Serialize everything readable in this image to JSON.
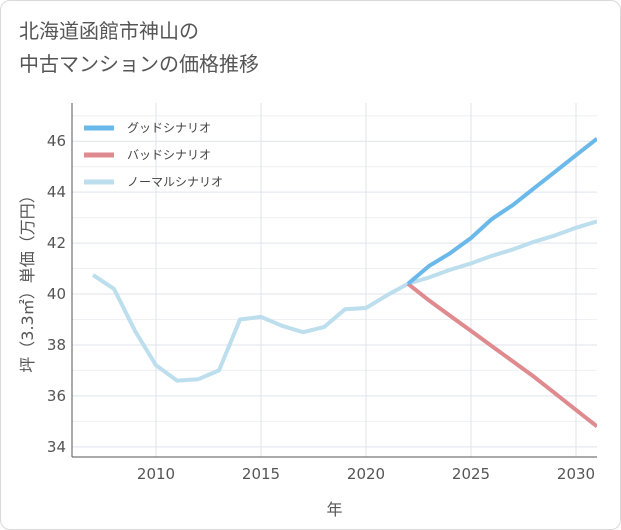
{
  "title_lines": [
    "北海道函館市神山の",
    "中古マンションの価格推移"
  ],
  "chart_data": {
    "type": "line",
    "title": "北海道函館市神山の中古マンションの価格推移",
    "xlabel": "年",
    "ylabel": "坪（3.3㎡）単価（万円）",
    "xlim": [
      2006,
      2031
    ],
    "ylim": [
      33.6,
      47.5
    ],
    "x_ticks": [
      2010,
      2015,
      2020,
      2025,
      2030
    ],
    "y_ticks": [
      34,
      36,
      38,
      40,
      42,
      44,
      46
    ],
    "grid": true,
    "legend_position": "top-left",
    "series": [
      {
        "name": "グッドシナリオ",
        "color": "#6ab9ea",
        "x": [
          2022,
          2023,
          2024,
          2025,
          2026,
          2027,
          2028,
          2029,
          2030,
          2031
        ],
        "y": [
          40.4,
          41.1,
          41.6,
          42.2,
          42.95,
          43.5,
          44.15,
          44.8,
          45.45,
          46.1
        ]
      },
      {
        "name": "バッドシナリオ",
        "color": "#de8a8f",
        "x": [
          2022,
          2023,
          2024,
          2025,
          2026,
          2027,
          2028,
          2029,
          2030,
          2031
        ],
        "y": [
          40.4,
          39.75,
          39.15,
          38.55,
          37.95,
          37.35,
          36.75,
          36.1,
          35.45,
          34.8
        ]
      },
      {
        "name": "ノーマルシナリオ",
        "color": "#bcdeed",
        "x": [
          2007,
          2008,
          2009,
          2010,
          2011,
          2012,
          2013,
          2014,
          2015,
          2016,
          2017,
          2018,
          2019,
          2020,
          2021,
          2022,
          2023,
          2024,
          2025,
          2026,
          2027,
          2028,
          2029,
          2030,
          2031
        ],
        "y": [
          40.75,
          40.2,
          38.55,
          37.2,
          36.6,
          36.65,
          37.0,
          39.0,
          39.1,
          38.75,
          38.5,
          38.7,
          39.4,
          39.45,
          39.95,
          40.4,
          40.65,
          40.95,
          41.2,
          41.5,
          41.75,
          42.05,
          42.3,
          42.6,
          42.85
        ]
      }
    ]
  }
}
